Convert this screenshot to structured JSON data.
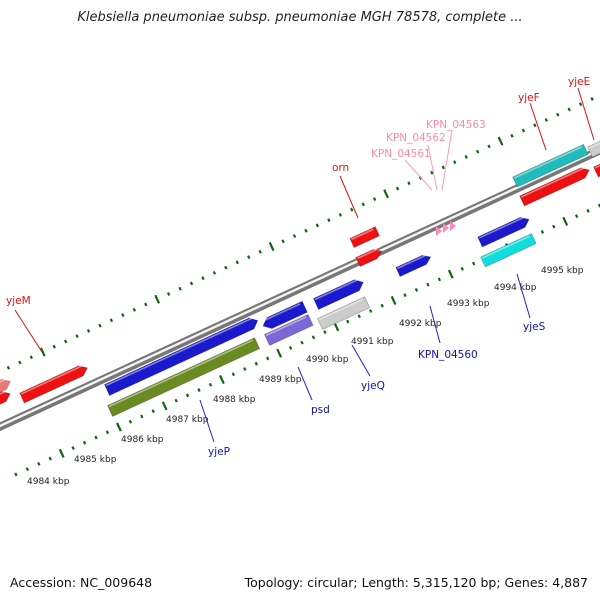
{
  "title": "Klebsiella pneumoniae subsp. pneumoniae MGH 78578, complete ...",
  "accession": "Accession: NC_009648",
  "topology": "Topology: circular; Length: 5,315,120 bp; Genes: 4,887",
  "colors": {
    "red": "#ee1111",
    "blue": "#1a1acc",
    "olive": "#6a8a22",
    "lavender": "#7b68d6",
    "cyan": "#11dddd",
    "teal": "#22bbbb",
    "gray": "#cccccc",
    "pink": "#ff88bb",
    "tick_green": "#116611",
    "backbone": "#888888"
  },
  "kbp_ticks": [
    {
      "label": "4984 kbp"
    },
    {
      "label": "4985 kbp"
    },
    {
      "label": "4986 kbp"
    },
    {
      "label": "4987 kbp"
    },
    {
      "label": "4988 kbp"
    },
    {
      "label": "4989 kbp"
    },
    {
      "label": "4990 kbp"
    },
    {
      "label": "4991 kbp"
    },
    {
      "label": "4992 kbp"
    },
    {
      "label": "4993 kbp"
    },
    {
      "label": "4994 kbp"
    },
    {
      "label": "4995 kbp"
    }
  ],
  "gene_labels": [
    {
      "text": "yjeM",
      "color": "#dd1111"
    },
    {
      "text": "orn",
      "color": "#dd1111"
    },
    {
      "text": "KPN_04561",
      "color": "#ff88aa"
    },
    {
      "text": "KPN_04562",
      "color": "#ff88aa"
    },
    {
      "text": "KPN_04563",
      "color": "#ff88aa"
    },
    {
      "text": "yjeF",
      "color": "#dd1111"
    },
    {
      "text": "yjeE",
      "color": "#dd1111"
    },
    {
      "text": "yjeP",
      "color": "#1111aa"
    },
    {
      "text": "psd",
      "color": "#1111aa"
    },
    {
      "text": "yjeQ",
      "color": "#1111aa"
    },
    {
      "text": "KPN_04560",
      "color": "#1111aa"
    },
    {
      "text": "yjeS",
      "color": "#1111aa"
    }
  ]
}
